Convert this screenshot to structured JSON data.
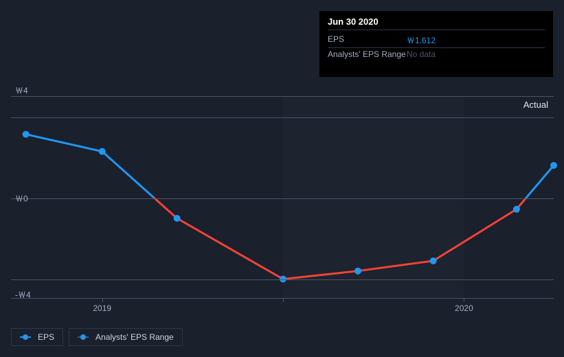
{
  "tooltip": {
    "title": "Jun 30 2020",
    "rows": [
      {
        "label": "EPS",
        "value": "￦1.612",
        "cls": "tooltip-value"
      },
      {
        "label": "Analysts' EPS Range",
        "value": "No data",
        "cls": "tooltip-nodata"
      }
    ]
  },
  "chart": {
    "type": "line",
    "ylim": [
      -5,
      5
    ],
    "yticks": [
      {
        "v": 4,
        "label": "￦4"
      },
      {
        "v": 0,
        "label": "￦0"
      },
      {
        "v": -4,
        "label": "-￦4"
      }
    ],
    "x_range_days": 1095,
    "xticks": [
      {
        "day": 184,
        "label": "2019"
      },
      {
        "day": 549,
        "label": ""
      },
      {
        "day": 914,
        "label": "2020"
      }
    ],
    "shade_band": {
      "start_day": 549,
      "end_day": 914
    },
    "actual_label": "Actual",
    "points": [
      {
        "day": 30,
        "v": 3.15
      },
      {
        "day": 184,
        "v": 2.3
      },
      {
        "day": 335,
        "v": -1.0
      },
      {
        "day": 549,
        "v": -4.0
      },
      {
        "day": 700,
        "v": -3.6
      },
      {
        "day": 852,
        "v": -3.1
      },
      {
        "day": 1020,
        "v": -0.55
      },
      {
        "day": 1095,
        "v": 1.612
      }
    ],
    "line_pos_color": "#2196f3",
    "line_neg_color": "#f44336",
    "line_width": 3,
    "marker_color": "#2196f3",
    "marker_radius": 5,
    "background_color": "#1a202c",
    "grid_color": "#4a5568",
    "tick_fontsize": 12,
    "y_axis_label_x": 6
  },
  "legend": {
    "items": [
      {
        "label": "EPS",
        "swatch": "sw-eps"
      },
      {
        "label": "Analysts' EPS Range",
        "swatch": "sw-rng"
      }
    ]
  }
}
